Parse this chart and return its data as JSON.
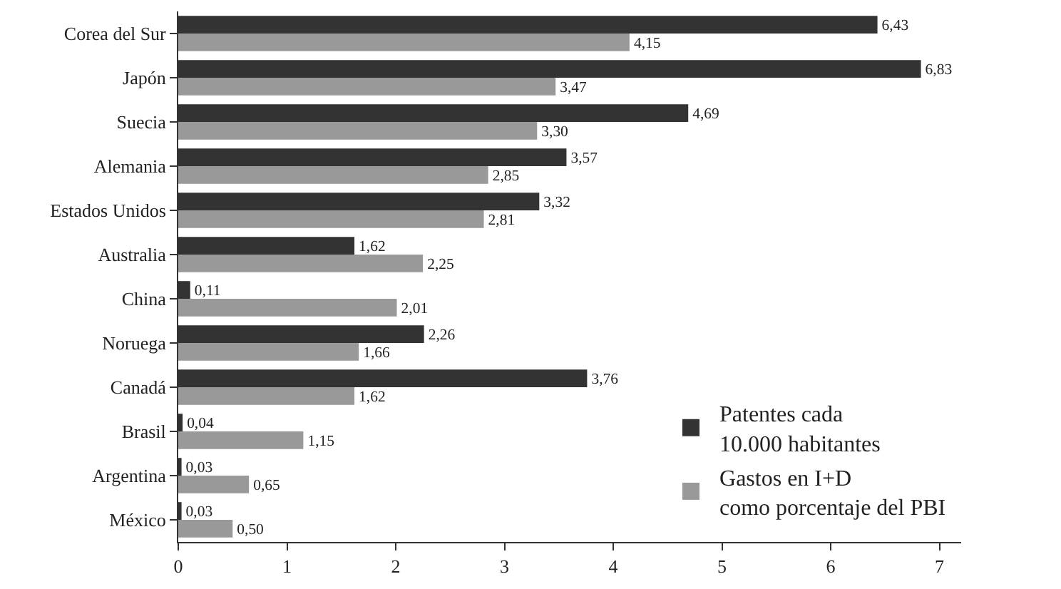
{
  "chart_data": {
    "type": "bar",
    "orientation": "horizontal",
    "categories": [
      "Corea del Sur",
      "Japón",
      "Suecia",
      "Alemania",
      "Estados Unidos",
      "Australia",
      "China",
      "Noruega",
      "Canadá",
      "Brasil",
      "Argentina",
      "México"
    ],
    "series": [
      {
        "name": "Patentes cada\n10.000 habitantes",
        "color": "#333333",
        "values": [
          6.43,
          6.83,
          4.69,
          3.57,
          3.32,
          1.62,
          0.11,
          2.26,
          3.76,
          0.04,
          0.03,
          0.03
        ],
        "value_labels": [
          "6,43",
          "6,83",
          "4,69",
          "3,57",
          "3,32",
          "1,62",
          "0,11",
          "2,26",
          "3,76",
          "0,04",
          "0,03",
          "0,03"
        ]
      },
      {
        "name": "Gastos en I+D\ncomo porcentaje del PBI",
        "color": "#999999",
        "values": [
          4.15,
          3.47,
          3.3,
          2.85,
          2.81,
          2.25,
          2.01,
          1.66,
          1.62,
          1.15,
          0.65,
          0.5
        ],
        "value_labels": [
          "4,15",
          "3,47",
          "3,30",
          "2,85",
          "2,81",
          "2,25",
          "2,01",
          "1,66",
          "1,62",
          "1,15",
          "0,65",
          "0,50"
        ]
      }
    ],
    "xlim": [
      0,
      7.2
    ],
    "xticks": [
      0,
      1,
      2,
      3,
      4,
      5,
      6,
      7
    ],
    "legend": "bottom right"
  }
}
